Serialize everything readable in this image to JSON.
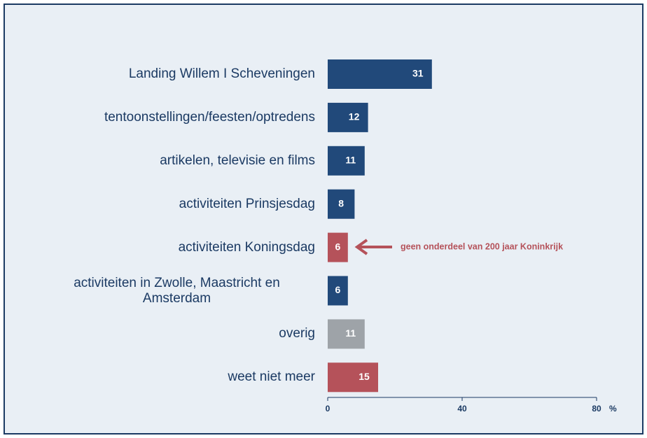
{
  "chart_data": {
    "type": "hbar",
    "categories": [
      "Landing Willem I Scheveningen",
      "tentoonstellingen/feesten/optredens",
      "artikelen, televisie en films",
      "activiteiten Prinsjesdag",
      "activiteiten Koningsdag",
      "activiteiten in Zwolle, Maastricht en Amsterdam",
      "overig",
      "weet niet meer"
    ],
    "values": [
      31,
      12,
      11,
      8,
      6,
      6,
      11,
      15
    ],
    "colors": [
      "#21497a",
      "#21497a",
      "#21497a",
      "#21497a",
      "#b5525a",
      "#21497a",
      "#9ea3a8",
      "#b5525a"
    ],
    "xlim": [
      0,
      80
    ],
    "xticks": [
      0,
      40,
      80
    ],
    "x_label": "%",
    "annotation": "geen onderdeel van 200 jaar Koninkrijk"
  }
}
